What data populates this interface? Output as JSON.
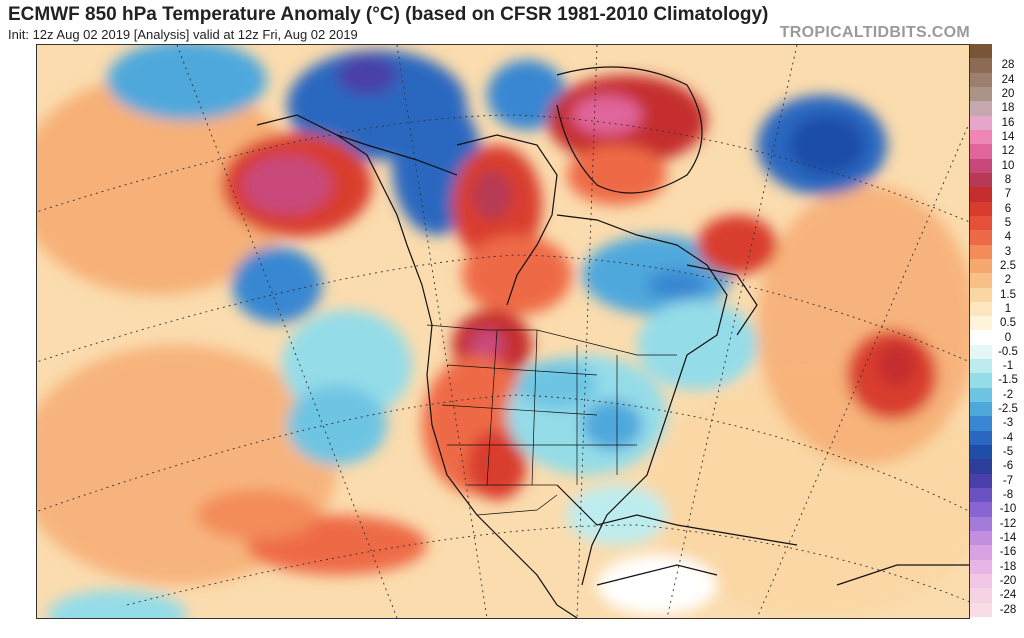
{
  "header": {
    "title": "ECMWF 850 hPa Temperature Anomaly (°C) (based on CFSR 1981-2010 Climatology)",
    "subtitle": "Init: 12z Aug 02 2019   [Analysis]   valid at 12z Fri, Aug 02 2019",
    "brand": "TROPICALTIDBITS.COM"
  },
  "colorbar": {
    "levels": [
      {
        "label": "",
        "color": "#7a5436"
      },
      {
        "label": "28",
        "color": "#8c6a55"
      },
      {
        "label": "24",
        "color": "#9c7f6c"
      },
      {
        "label": "20",
        "color": "#aa9488"
      },
      {
        "label": "18",
        "color": "#c5a8af"
      },
      {
        "label": "16",
        "color": "#e6a6cc"
      },
      {
        "label": "14",
        "color": "#ef86b4"
      },
      {
        "label": "12",
        "color": "#e0659a"
      },
      {
        "label": "10",
        "color": "#c8487a"
      },
      {
        "label": "8",
        "color": "#b63a55"
      },
      {
        "label": "7",
        "color": "#c52d2f"
      },
      {
        "label": "6",
        "color": "#d93c2f"
      },
      {
        "label": "5",
        "color": "#e4503a"
      },
      {
        "label": "4",
        "color": "#ee6a47"
      },
      {
        "label": "3",
        "color": "#f38b5a"
      },
      {
        "label": "2.5",
        "color": "#f6a96f"
      },
      {
        "label": "2",
        "color": "#f8c087"
      },
      {
        "label": "1.5",
        "color": "#fad6a3"
      },
      {
        "label": "1",
        "color": "#fde6bd"
      },
      {
        "label": "0.5",
        "color": "#fff4da"
      },
      {
        "label": "0",
        "color": "#ffffff"
      },
      {
        "label": "-0.5",
        "color": "#e4f6f7"
      },
      {
        "label": "-1",
        "color": "#bdecef"
      },
      {
        "label": "-1.5",
        "color": "#94dce8"
      },
      {
        "label": "-2",
        "color": "#6ec5e3"
      },
      {
        "label": "-2.5",
        "color": "#4fa8dc"
      },
      {
        "label": "-3",
        "color": "#3987d2"
      },
      {
        "label": "-4",
        "color": "#2a67c0"
      },
      {
        "label": "-5",
        "color": "#1f4ea8"
      },
      {
        "label": "-6",
        "color": "#2d3d9a"
      },
      {
        "label": "-7",
        "color": "#4a3fa8"
      },
      {
        "label": "-8",
        "color": "#6a52c2"
      },
      {
        "label": "-10",
        "color": "#8865d2"
      },
      {
        "label": "-12",
        "color": "#a47adb"
      },
      {
        "label": "-14",
        "color": "#c28fe0"
      },
      {
        "label": "-16",
        "color": "#d9a2e2"
      },
      {
        "label": "-18",
        "color": "#e8b6e6"
      },
      {
        "label": "-20",
        "color": "#f2c6e6"
      },
      {
        "label": "-24",
        "color": "#f5d3e4"
      },
      {
        "label": "-28",
        "color": "#f8dee4"
      }
    ]
  }
}
